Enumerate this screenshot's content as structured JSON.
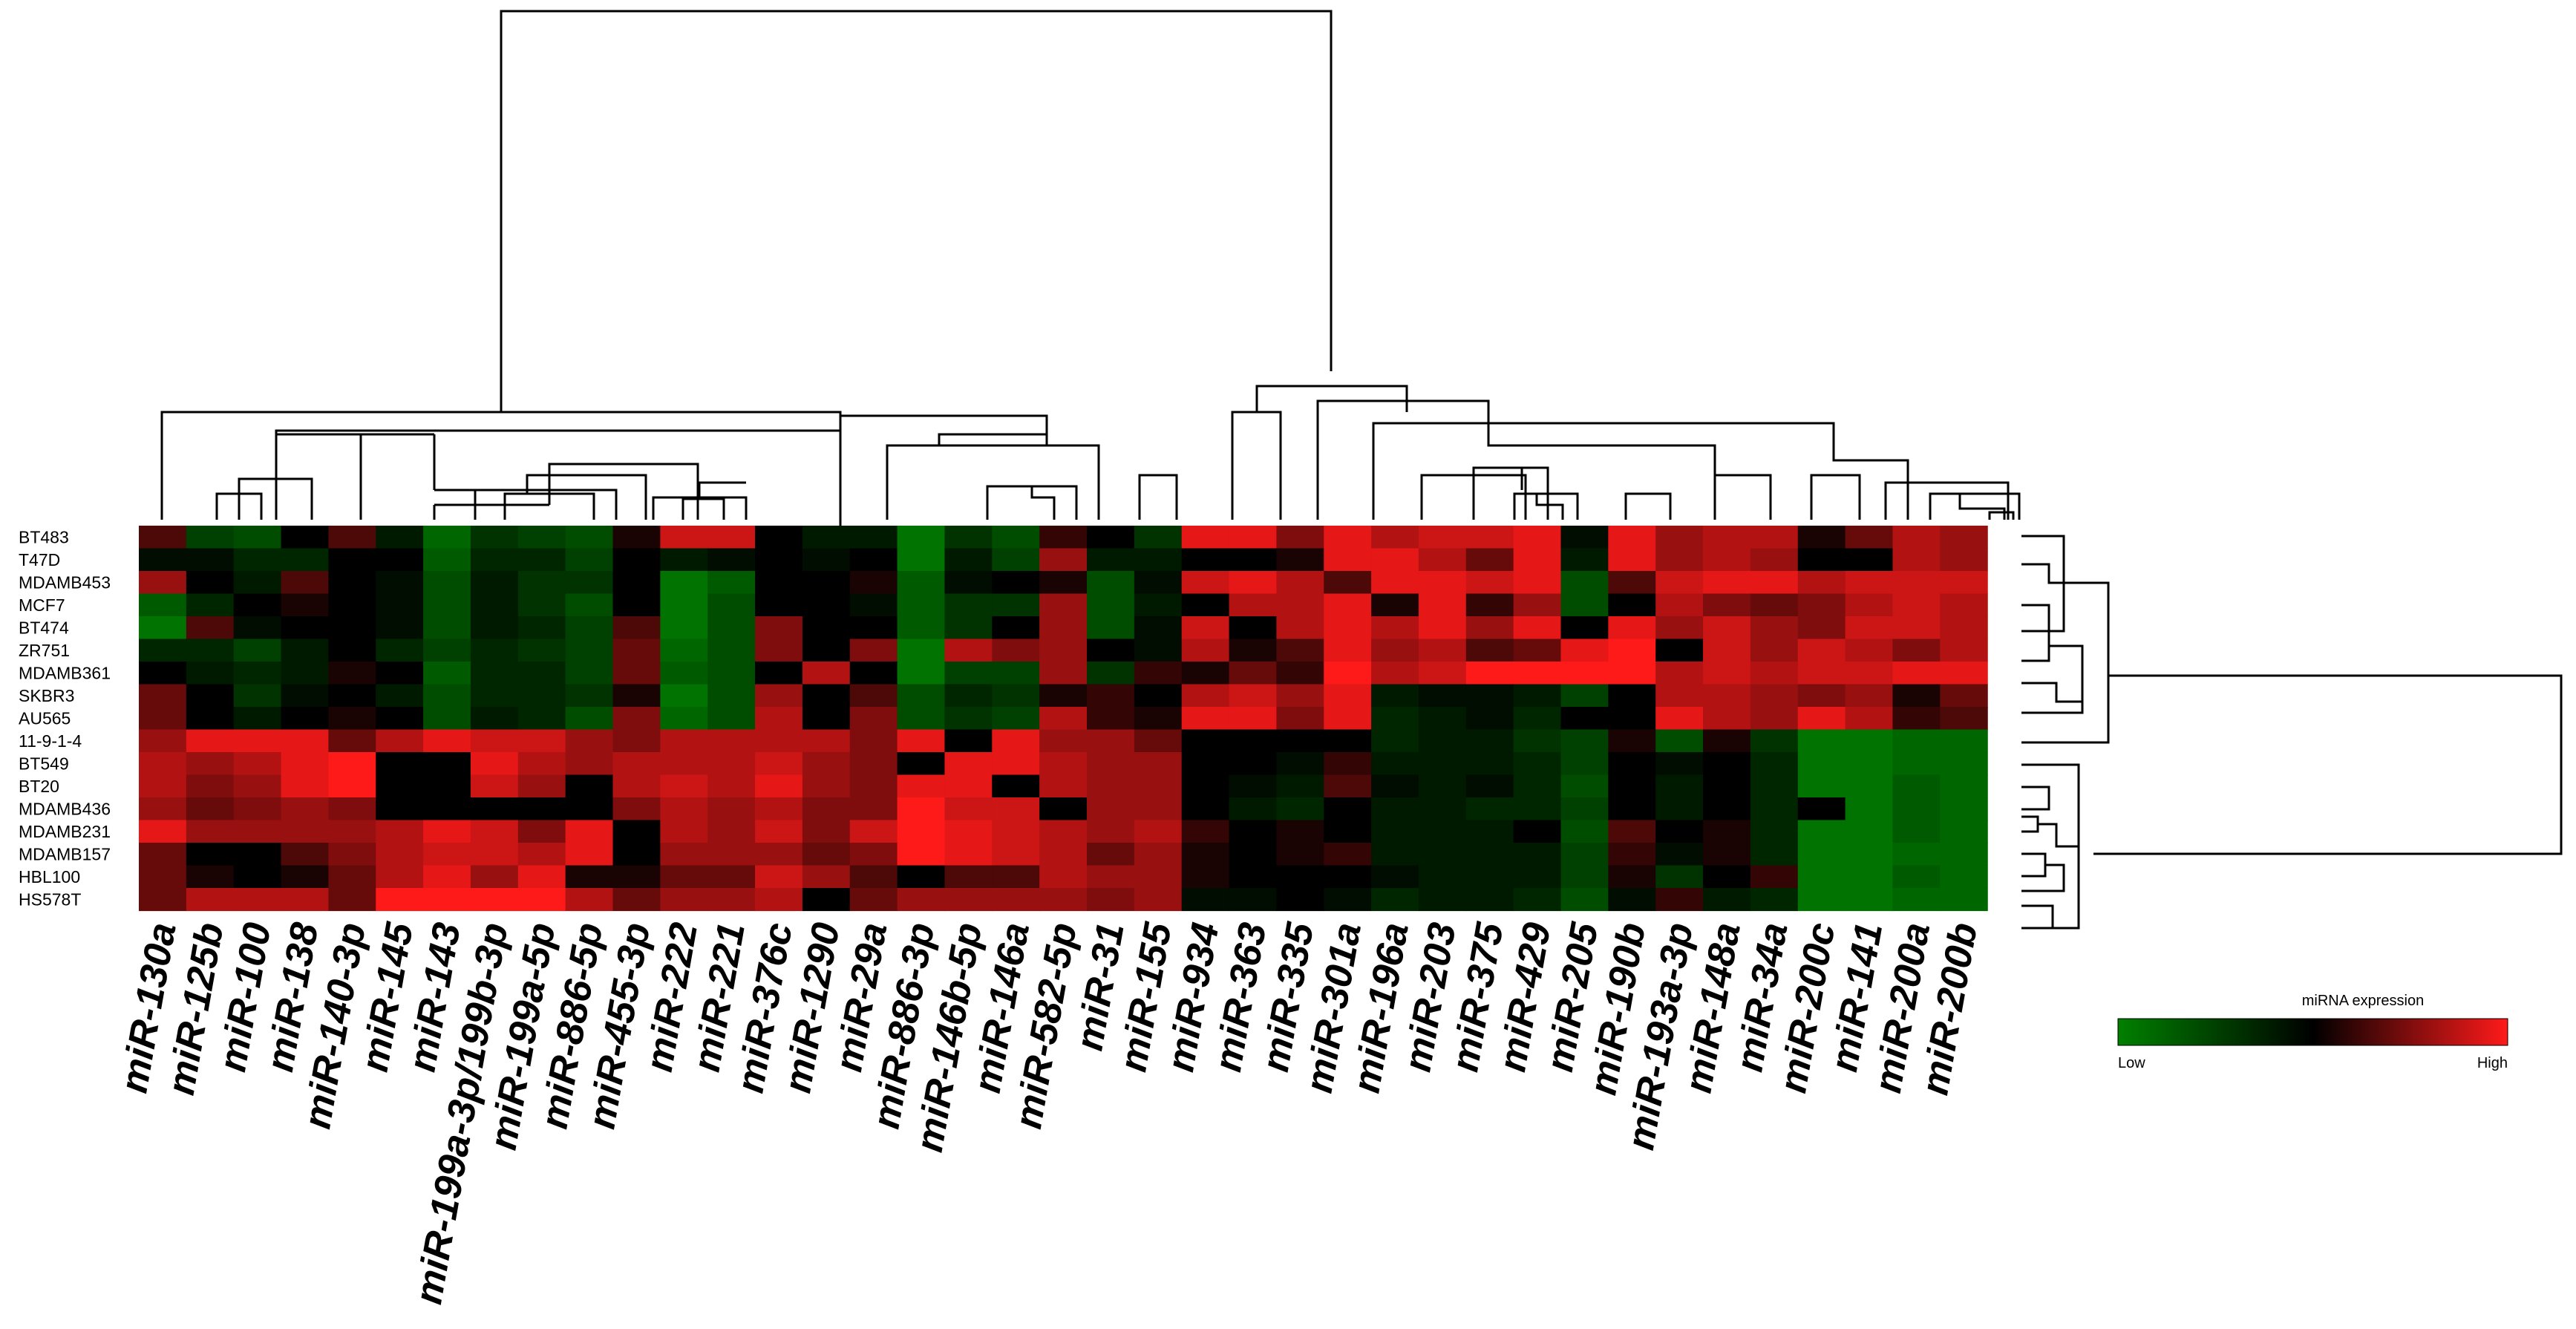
{
  "chart_data": {
    "type": "heatmap",
    "title": "",
    "rows": [
      "BT483",
      "T47D",
      "MDAMB453",
      "MCF7",
      "BT474",
      "ZR751",
      "MDAMB361",
      "SKBR3",
      "AU565",
      "11-9-1-4",
      "BT549",
      "BT20",
      "MDAMB436",
      "MDAMB231",
      "MDAMB157",
      "HBL100",
      "HS578T"
    ],
    "columns": [
      "miR-130a",
      "miR-125b",
      "miR-100",
      "miR-138",
      "miR-140-3p",
      "miR-145",
      "miR-143",
      "miR-199a-3p/199b-3p",
      "miR-199a-5p",
      "miR-886-5p",
      "miR-455-3p",
      "miR-222",
      "miR-221",
      "miR-376c",
      "miR-1290",
      "miR-29a",
      "miR-886-3p",
      "miR-146b-5p",
      "miR-146a",
      "miR-582-5p",
      "miR-31",
      "miR-155",
      "miR-934",
      "miR-363",
      "miR-335",
      "miR-301a",
      "miR-196a",
      "miR-203",
      "miR-375",
      "miR-429",
      "miR-205",
      "miR-190b",
      "miR-193a-3p",
      "miR-148a",
      "miR-34a",
      "miR-200c",
      "miR-141",
      "miR-200a",
      "miR-200b"
    ],
    "values": [
      [
        0.3,
        -0.5,
        -0.6,
        0.0,
        0.3,
        -0.2,
        -0.8,
        -0.4,
        -0.5,
        -0.6,
        0.1,
        0.8,
        0.8,
        0.0,
        -0.2,
        -0.2,
        -0.9,
        -0.4,
        -0.6,
        0.2,
        0.0,
        -0.4,
        0.9,
        0.9,
        0.5,
        0.9,
        0.7,
        0.8,
        0.8,
        0.9,
        -0.1,
        0.9,
        0.6,
        0.7,
        0.7,
        0.1,
        0.4,
        0.7,
        0.6
      ],
      [
        -0.1,
        -0.1,
        -0.3,
        -0.3,
        0.0,
        0.0,
        -0.7,
        -0.3,
        -0.3,
        -0.5,
        0.0,
        -0.2,
        -0.1,
        0.0,
        -0.1,
        0.0,
        -0.9,
        -0.2,
        -0.5,
        0.6,
        -0.2,
        -0.2,
        0.0,
        0.0,
        0.1,
        0.9,
        0.9,
        0.7,
        0.4,
        0.9,
        -0.2,
        0.9,
        0.6,
        0.7,
        0.6,
        0.0,
        0.0,
        0.7,
        0.6
      ],
      [
        0.6,
        0.0,
        -0.2,
        0.3,
        0.0,
        -0.1,
        -0.6,
        -0.2,
        -0.4,
        -0.4,
        0.0,
        -0.9,
        -0.7,
        0.0,
        0.0,
        0.1,
        -0.7,
        -0.1,
        0.0,
        0.1,
        -0.6,
        -0.1,
        0.8,
        0.9,
        0.7,
        0.3,
        0.9,
        0.9,
        0.8,
        0.9,
        -0.6,
        0.3,
        0.8,
        0.9,
        0.9,
        0.7,
        0.8,
        0.8,
        0.8
      ],
      [
        -0.7,
        -0.3,
        0.0,
        0.1,
        0.0,
        -0.1,
        -0.6,
        -0.2,
        -0.4,
        -0.6,
        0.0,
        -0.9,
        -0.6,
        0.0,
        0.0,
        -0.1,
        -0.7,
        -0.4,
        -0.4,
        0.6,
        -0.6,
        -0.2,
        0.0,
        0.7,
        0.7,
        0.9,
        0.1,
        0.9,
        0.2,
        0.6,
        -0.6,
        0.0,
        0.7,
        0.5,
        0.4,
        0.5,
        0.7,
        0.8,
        0.7
      ],
      [
        -0.9,
        0.3,
        -0.1,
        0.0,
        0.0,
        -0.1,
        -0.6,
        -0.2,
        -0.3,
        -0.5,
        0.3,
        -0.9,
        -0.6,
        0.5,
        0.0,
        0.0,
        -0.7,
        -0.4,
        0.0,
        0.6,
        -0.6,
        -0.1,
        0.8,
        0.0,
        0.7,
        0.9,
        0.7,
        0.9,
        0.6,
        0.9,
        0.0,
        0.9,
        0.6,
        0.8,
        0.6,
        0.5,
        0.8,
        0.8,
        0.7
      ],
      [
        -0.3,
        -0.3,
        -0.5,
        -0.2,
        0.0,
        -0.3,
        -0.5,
        -0.3,
        -0.4,
        -0.5,
        0.4,
        -0.8,
        -0.6,
        0.5,
        0.0,
        0.5,
        -0.9,
        0.7,
        0.5,
        0.6,
        0.0,
        -0.1,
        0.7,
        0.1,
        0.3,
        0.9,
        0.6,
        0.7,
        0.3,
        0.4,
        0.9,
        1.0,
        0.0,
        0.8,
        0.6,
        0.8,
        0.7,
        0.5,
        0.7
      ],
      [
        0.0,
        -0.2,
        -0.3,
        -0.2,
        0.1,
        0.0,
        -0.7,
        -0.3,
        -0.3,
        -0.5,
        0.4,
        -0.7,
        -0.6,
        0.0,
        0.7,
        0.0,
        -0.9,
        -0.5,
        -0.5,
        0.6,
        -0.4,
        0.2,
        0.1,
        0.4,
        0.2,
        1.0,
        0.7,
        0.8,
        1.0,
        1.0,
        1.0,
        1.0,
        0.7,
        0.8,
        0.7,
        0.8,
        0.8,
        0.9,
        0.9
      ],
      [
        0.4,
        0.0,
        -0.4,
        -0.1,
        0.0,
        -0.2,
        -0.6,
        -0.3,
        -0.3,
        -0.4,
        0.1,
        -0.9,
        -0.6,
        0.6,
        0.0,
        0.3,
        -0.6,
        -0.3,
        -0.4,
        0.1,
        0.2,
        0.0,
        0.7,
        0.8,
        0.6,
        0.9,
        -0.2,
        -0.1,
        -0.1,
        -0.2,
        -0.5,
        0.0,
        0.7,
        0.7,
        0.6,
        0.5,
        0.6,
        0.1,
        0.4
      ],
      [
        0.4,
        0.0,
        -0.2,
        0.0,
        0.1,
        0.0,
        -0.6,
        -0.2,
        -0.3,
        -0.6,
        0.5,
        -0.8,
        -0.6,
        0.7,
        0.0,
        0.5,
        -0.6,
        -0.4,
        -0.5,
        0.7,
        0.2,
        0.1,
        0.9,
        0.9,
        0.5,
        0.9,
        -0.3,
        -0.2,
        -0.1,
        -0.3,
        0.0,
        0.0,
        0.9,
        0.7,
        0.6,
        0.9,
        0.7,
        0.2,
        0.3
      ],
      [
        0.6,
        0.9,
        0.9,
        0.9,
        0.4,
        0.7,
        0.9,
        0.8,
        0.8,
        0.6,
        0.5,
        0.7,
        0.7,
        0.7,
        0.7,
        0.5,
        0.9,
        0.0,
        0.9,
        0.6,
        0.6,
        0.4,
        0.0,
        0.0,
        0.0,
        0.0,
        -0.3,
        -0.2,
        -0.2,
        -0.4,
        -0.5,
        0.1,
        -0.6,
        0.1,
        -0.4,
        -0.9,
        -0.9,
        -0.8,
        -0.8
      ],
      [
        0.7,
        0.6,
        0.7,
        0.9,
        1.0,
        0.0,
        0.0,
        0.9,
        0.7,
        0.6,
        0.7,
        0.7,
        0.7,
        0.8,
        0.6,
        0.5,
        0.0,
        0.9,
        0.9,
        0.7,
        0.6,
        0.6,
        0.0,
        0.0,
        -0.1,
        0.2,
        -0.2,
        -0.2,
        -0.2,
        -0.3,
        -0.5,
        0.0,
        -0.1,
        0.0,
        -0.3,
        -0.9,
        -0.9,
        -0.8,
        -0.8
      ],
      [
        0.7,
        0.5,
        0.6,
        0.9,
        1.0,
        0.0,
        0.0,
        0.8,
        0.6,
        0.0,
        0.7,
        0.8,
        0.7,
        0.9,
        0.6,
        0.5,
        0.9,
        0.9,
        0.0,
        0.7,
        0.6,
        0.6,
        0.0,
        -0.1,
        -0.2,
        0.3,
        -0.1,
        -0.2,
        -0.1,
        -0.3,
        -0.6,
        0.0,
        -0.2,
        0.0,
        -0.3,
        -0.9,
        -0.9,
        -0.7,
        -0.8
      ],
      [
        0.6,
        0.4,
        0.5,
        0.6,
        0.5,
        0.0,
        0.0,
        0.0,
        0.0,
        0.0,
        0.5,
        0.7,
        0.6,
        0.7,
        0.5,
        0.5,
        1.0,
        0.8,
        0.8,
        0.0,
        0.6,
        0.6,
        0.0,
        -0.2,
        -0.3,
        0.0,
        -0.2,
        -0.2,
        -0.3,
        -0.3,
        -0.5,
        0.0,
        -0.2,
        0.0,
        -0.3,
        0.0,
        -0.9,
        -0.7,
        -0.8
      ],
      [
        0.9,
        0.6,
        0.6,
        0.6,
        0.6,
        0.7,
        0.9,
        0.8,
        0.5,
        0.9,
        0.0,
        0.7,
        0.6,
        0.8,
        0.5,
        0.8,
        1.0,
        0.9,
        0.8,
        0.7,
        0.6,
        0.7,
        0.2,
        0.0,
        0.1,
        0.0,
        -0.2,
        -0.2,
        -0.2,
        0.0,
        -0.6,
        0.3,
        0.0,
        0.1,
        -0.3,
        -0.9,
        -0.9,
        -0.7,
        -0.8
      ],
      [
        0.4,
        0.0,
        0.0,
        0.3,
        0.5,
        0.7,
        0.8,
        0.8,
        0.7,
        0.9,
        0.0,
        0.6,
        0.6,
        0.6,
        0.4,
        0.5,
        1.0,
        0.9,
        0.8,
        0.7,
        0.4,
        0.6,
        0.1,
        0.0,
        0.1,
        0.2,
        -0.2,
        -0.2,
        -0.2,
        -0.2,
        -0.5,
        0.2,
        -0.1,
        0.1,
        -0.3,
        -0.9,
        -0.9,
        -0.8,
        -0.8
      ],
      [
        0.4,
        0.1,
        0.0,
        0.1,
        0.4,
        0.7,
        0.9,
        0.6,
        0.9,
        0.1,
        0.1,
        0.4,
        0.4,
        0.8,
        0.6,
        0.3,
        0.0,
        0.3,
        0.3,
        0.7,
        0.6,
        0.6,
        0.1,
        0.0,
        0.0,
        0.0,
        -0.1,
        -0.2,
        -0.2,
        -0.2,
        -0.5,
        0.1,
        -0.4,
        0.0,
        0.2,
        -0.9,
        -0.9,
        -0.7,
        -0.8
      ],
      [
        0.4,
        0.7,
        0.7,
        0.7,
        0.4,
        1.0,
        1.0,
        1.0,
        1.0,
        0.7,
        0.4,
        0.6,
        0.6,
        0.7,
        0.0,
        0.4,
        0.6,
        0.6,
        0.6,
        0.6,
        0.5,
        0.6,
        -0.1,
        -0.1,
        0.0,
        -0.1,
        -0.3,
        -0.2,
        -0.2,
        -0.3,
        -0.6,
        -0.1,
        0.2,
        -0.2,
        -0.3,
        -0.9,
        -0.9,
        -0.8,
        -0.8
      ]
    ],
    "color_scale": {
      "low": "#008000",
      "mid": "#000000",
      "high": "#ff1a1a"
    },
    "legend": {
      "title": "miRNA expression",
      "low_label": "Low",
      "high_label": "High",
      "position": "bottom-right"
    }
  }
}
